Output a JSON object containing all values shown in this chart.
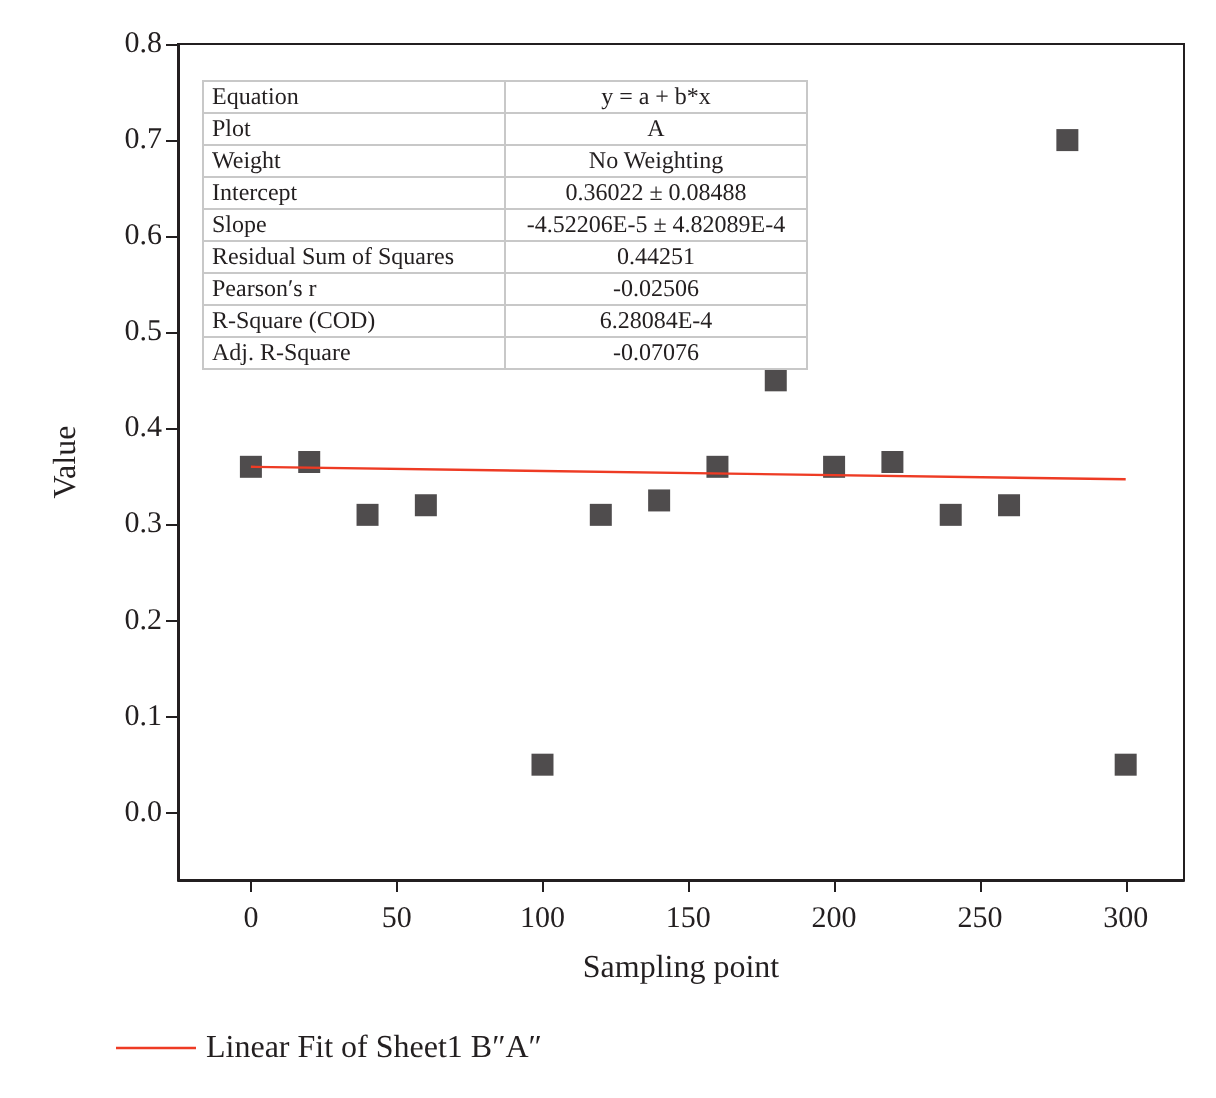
{
  "chart_data": {
    "type": "scatter",
    "xlabel": "Sampling point",
    "ylabel": "Value",
    "x": [
      0,
      20,
      40,
      60,
      100,
      120,
      140,
      160,
      180,
      200,
      220,
      240,
      260,
      280,
      300
    ],
    "series": [
      {
        "type": "scatter",
        "color": "#231f20",
        "values": [
          0.36,
          0.365,
          0.31,
          0.32,
          0.05,
          0.31,
          0.325,
          0.36,
          0.45,
          0.36,
          0.365,
          0.31,
          0.32,
          0.7,
          0.05
        ]
      },
      {
        "type": "line",
        "name": "Linear Fit of Sheet1 B″A″",
        "color": "#ee3b24",
        "x": [
          0,
          300
        ],
        "values": [
          0.36,
          0.347
        ],
        "marker": "none"
      }
    ],
    "marker": "square",
    "xlim": [
      -25,
      320
    ],
    "xticks": [
      0,
      50,
      100,
      150,
      200,
      250,
      300
    ],
    "ylim": [
      -0.07,
      0.8
    ],
    "yticks": [
      {
        "value": 0,
        "label": "0.0"
      },
      0.1,
      0.2,
      0.3,
      0.4,
      0.5,
      0.6,
      0.7,
      0.8
    ],
    "grid": false,
    "legend": "bottom left",
    "annotations": [
      "Equation",
      "y = a + b*x",
      "Plot",
      "A",
      "Weight",
      "No Weighting",
      "Intercept",
      "0.36022 ± 0.08488",
      "Slope",
      "-4.52206E-5 ± 4.82089E-4",
      "Residual Sum of Squares",
      "0.44251",
      "Pearson′s r",
      "-0.02506",
      "R-Square (COD)",
      "6.28084E-4",
      "Adj. R-Square",
      "-0.07076"
    ]
  }
}
